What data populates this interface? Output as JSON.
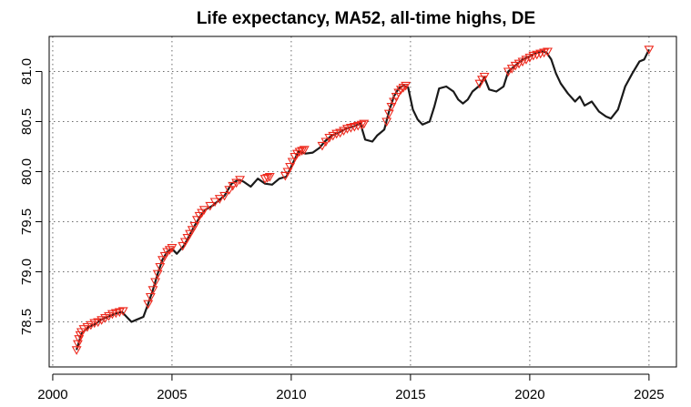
{
  "chart_data": {
    "type": "line",
    "title": "Life expectancy, MA52, all-time highs, DE",
    "xlabel": "",
    "ylabel": "",
    "xlim": [
      1999.85,
      2026.15
    ],
    "ylim": [
      78.05,
      81.35
    ],
    "x_ticks": [
      2000,
      2005,
      2010,
      2015,
      2020,
      2025
    ],
    "x_tick_labels": [
      "2000",
      "2005",
      "2010",
      "2015",
      "2020",
      "2025"
    ],
    "y_ticks": [
      78.5,
      79.0,
      79.5,
      80.0,
      80.5,
      81.0
    ],
    "y_tick_labels": [
      "78.5",
      "79.0",
      "79.5",
      "80.0",
      "80.5",
      "81.0"
    ],
    "grid": true,
    "series": [
      {
        "role": "line",
        "x": [
          2001.0,
          2001.2,
          2001.5,
          2001.8,
          2002.0,
          2002.3,
          2002.6,
          2002.9,
          2003.1,
          2003.3,
          2003.5,
          2003.8,
          2004.0,
          2004.2,
          2004.4,
          2004.6,
          2004.8,
          2005.0,
          2005.2,
          2005.5,
          2005.7,
          2005.9,
          2006.2,
          2006.4,
          2006.7,
          2007.0,
          2007.2,
          2007.5,
          2007.8,
          2008.0,
          2008.3,
          2008.6,
          2008.9,
          2009.2,
          2009.5,
          2009.8,
          2010.0,
          2010.3,
          2010.6,
          2010.9,
          2011.2,
          2011.4,
          2011.7,
          2012.0,
          2012.3,
          2012.6,
          2012.9,
          2013.1,
          2013.4,
          2013.6,
          2013.9,
          2014.1,
          2014.3,
          2014.5,
          2014.7,
          2014.9,
          2015.1,
          2015.3,
          2015.5,
          2015.8,
          2016.0,
          2016.2,
          2016.5,
          2016.8,
          2017.0,
          2017.2,
          2017.4,
          2017.6,
          2017.9,
          2018.1,
          2018.3,
          2018.6,
          2018.9,
          2019.1,
          2019.4,
          2019.7,
          2020.0,
          2020.2,
          2020.5,
          2020.7,
          2020.9,
          2021.1,
          2021.3,
          2021.6,
          2021.9,
          2022.1,
          2022.3,
          2022.6,
          2022.9,
          2023.2,
          2023.4,
          2023.7,
          2024.0,
          2024.3,
          2024.6,
          2024.8,
          2025.0
        ],
        "y": [
          78.22,
          78.38,
          78.45,
          78.48,
          78.52,
          78.55,
          78.58,
          78.6,
          78.55,
          78.5,
          78.52,
          78.55,
          78.68,
          78.82,
          78.98,
          79.12,
          79.2,
          79.23,
          79.18,
          79.26,
          79.35,
          79.44,
          79.56,
          79.62,
          79.66,
          79.72,
          79.76,
          79.88,
          79.92,
          79.9,
          79.85,
          79.93,
          79.88,
          79.87,
          79.93,
          79.95,
          80.05,
          80.2,
          80.18,
          80.19,
          80.24,
          80.3,
          80.36,
          80.39,
          80.43,
          80.45,
          80.48,
          80.32,
          80.3,
          80.36,
          80.42,
          80.6,
          80.75,
          80.83,
          80.86,
          80.84,
          80.62,
          80.52,
          80.47,
          80.5,
          80.65,
          80.83,
          80.85,
          80.8,
          80.72,
          80.68,
          80.72,
          80.8,
          80.86,
          80.94,
          80.82,
          80.8,
          80.85,
          81.0,
          81.06,
          81.12,
          81.15,
          81.18,
          81.2,
          81.19,
          81.12,
          80.98,
          80.88,
          80.78,
          80.7,
          80.75,
          80.66,
          80.7,
          80.6,
          80.55,
          80.53,
          80.62,
          80.85,
          80.98,
          81.1,
          81.12,
          81.22
        ]
      },
      {
        "role": "markers",
        "marker": "triangle-down",
        "x": [
          2001.0,
          2001.05,
          2001.1,
          2001.15,
          2001.2,
          2001.3,
          2001.45,
          2001.6,
          2001.75,
          2001.9,
          2002.05,
          2002.2,
          2002.35,
          2002.5,
          2002.65,
          2002.8,
          2002.95,
          2004.0,
          2004.1,
          2004.2,
          2004.3,
          2004.4,
          2004.5,
          2004.6,
          2004.7,
          2004.8,
          2004.9,
          2005.0,
          2005.45,
          2005.55,
          2005.65,
          2005.75,
          2005.85,
          2005.95,
          2006.05,
          2006.15,
          2006.25,
          2006.35,
          2006.6,
          2006.8,
          2007.0,
          2007.2,
          2007.4,
          2007.55,
          2007.7,
          2007.85,
          2008.9,
          2009.0,
          2009.1,
          2009.75,
          2009.85,
          2009.95,
          2010.05,
          2010.15,
          2010.25,
          2010.35,
          2010.45,
          2010.55,
          2011.3,
          2011.45,
          2011.6,
          2011.75,
          2011.9,
          2012.05,
          2012.2,
          2012.35,
          2012.5,
          2012.65,
          2012.8,
          2012.95,
          2013.05,
          2014.0,
          2014.1,
          2014.2,
          2014.3,
          2014.4,
          2014.5,
          2014.6,
          2014.7,
          2014.8,
          2017.9,
          2018.0,
          2018.1,
          2019.1,
          2019.25,
          2019.4,
          2019.55,
          2019.7,
          2019.85,
          2020.0,
          2020.15,
          2020.3,
          2020.45,
          2020.6,
          2020.75,
          2025.0
        ],
        "y": [
          78.22,
          78.28,
          78.33,
          78.37,
          78.4,
          78.43,
          78.45,
          78.47,
          78.49,
          78.5,
          78.52,
          78.54,
          78.56,
          78.58,
          78.59,
          78.6,
          78.61,
          78.68,
          78.75,
          78.82,
          78.9,
          78.98,
          79.05,
          79.12,
          79.16,
          79.2,
          79.22,
          79.24,
          79.26,
          79.3,
          79.34,
          79.38,
          79.42,
          79.46,
          79.52,
          79.56,
          79.59,
          79.62,
          79.66,
          79.7,
          79.73,
          79.76,
          79.82,
          79.86,
          79.89,
          79.92,
          79.93,
          79.94,
          79.95,
          79.96,
          80.0,
          80.05,
          80.1,
          80.15,
          80.18,
          80.2,
          80.21,
          80.22,
          80.26,
          80.3,
          80.34,
          80.36,
          80.38,
          80.39,
          80.41,
          80.43,
          80.44,
          80.45,
          80.46,
          80.47,
          80.48,
          80.5,
          80.58,
          80.65,
          80.7,
          80.75,
          80.79,
          80.82,
          80.84,
          80.86,
          80.88,
          80.92,
          80.95,
          81.0,
          81.03,
          81.06,
          81.08,
          81.1,
          81.12,
          81.14,
          81.16,
          81.17,
          81.18,
          81.19,
          81.2,
          81.22
        ]
      }
    ]
  }
}
